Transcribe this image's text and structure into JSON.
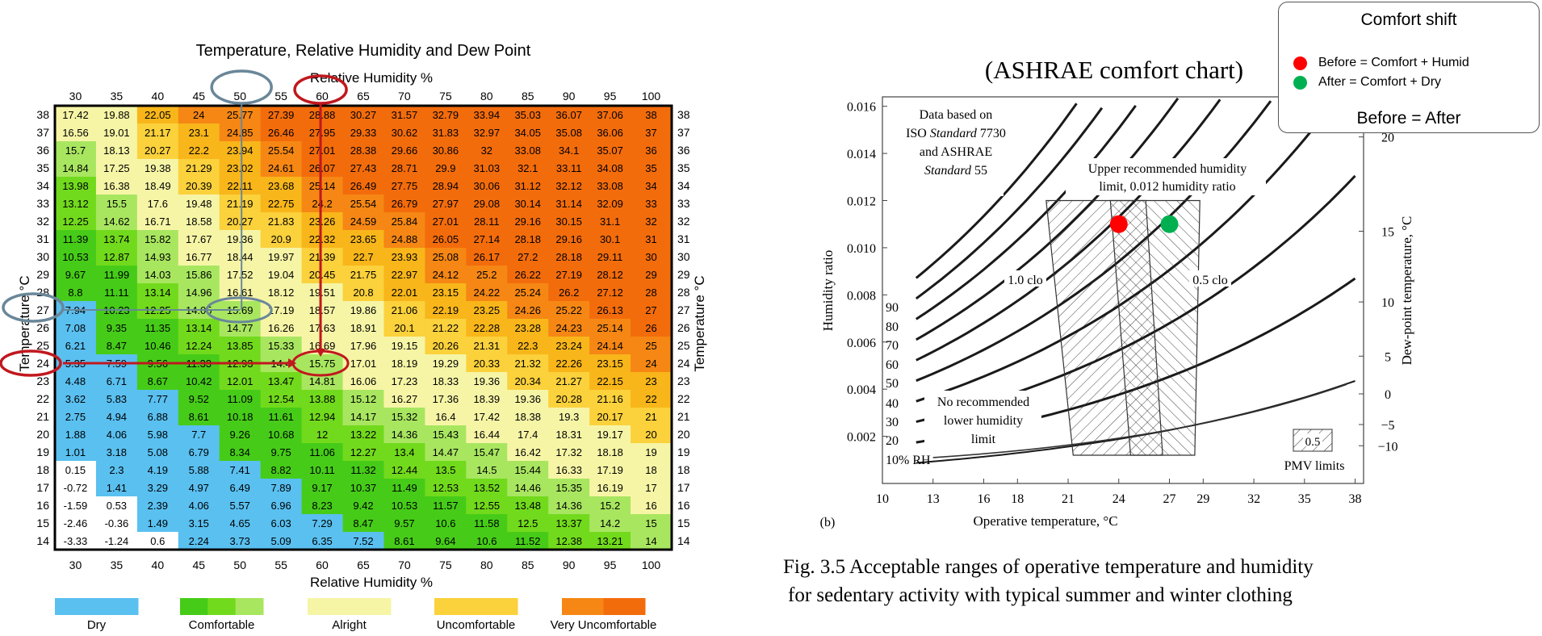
{
  "chart_data": [
    {
      "type": "heatmap",
      "title": "Temperature, Relative Humidity and Dew Point",
      "xlabel": "Relative Humidity %",
      "ylabel": "Temperature °C",
      "x": [
        30,
        35,
        40,
        45,
        50,
        55,
        60,
        65,
        70,
        75,
        80,
        85,
        90,
        95,
        100
      ],
      "y": [
        38,
        37,
        36,
        35,
        34,
        33,
        32,
        31,
        30,
        29,
        28,
        27,
        26,
        25,
        24,
        23,
        22,
        21,
        20,
        19,
        18,
        17,
        16,
        15,
        14
      ],
      "cells": [
        [
          "17.42",
          "19.88",
          "22.05",
          "24",
          "25.77",
          "27.39",
          "28.88",
          "30.27",
          "31.57",
          "32.79",
          "33.94",
          "35.03",
          "36.07",
          "37.06",
          "38"
        ],
        [
          "16.56",
          "19.01",
          "21.17",
          "23.1",
          "24.85",
          "26.46",
          "27.95",
          "29.33",
          "30.62",
          "31.83",
          "32.97",
          "34.05",
          "35.08",
          "36.06",
          "37"
        ],
        [
          "15.7",
          "18.13",
          "20.27",
          "22.2",
          "23.94",
          "25.54",
          "27.01",
          "28.38",
          "29.66",
          "30.86",
          "32",
          "33.08",
          "34.1",
          "35.07",
          "36"
        ],
        [
          "14.84",
          "17.25",
          "19.38",
          "21.29",
          "23.02",
          "24.61",
          "26.07",
          "27.43",
          "28.71",
          "29.9",
          "31.03",
          "32.1",
          "33.11",
          "34.08",
          "35"
        ],
        [
          "13.98",
          "16.38",
          "18.49",
          "20.39",
          "22.11",
          "23.68",
          "25.14",
          "26.49",
          "27.75",
          "28.94",
          "30.06",
          "31.12",
          "32.12",
          "33.08",
          "34"
        ],
        [
          "13.12",
          "15.5",
          "17.6",
          "19.48",
          "21.19",
          "22.75",
          "24.2",
          "25.54",
          "26.79",
          "27.97",
          "29.08",
          "30.14",
          "31.14",
          "32.09",
          "33"
        ],
        [
          "12.25",
          "14.62",
          "16.71",
          "18.58",
          "20.27",
          "21.83",
          "23.26",
          "24.59",
          "25.84",
          "27.01",
          "28.11",
          "29.16",
          "30.15",
          "31.1",
          "32"
        ],
        [
          "11.39",
          "13.74",
          "15.82",
          "17.67",
          "19.36",
          "20.9",
          "22.32",
          "23.65",
          "24.88",
          "26.05",
          "27.14",
          "28.18",
          "29.16",
          "30.1",
          "31"
        ],
        [
          "10.53",
          "12.87",
          "14.93",
          "16.77",
          "18.44",
          "19.97",
          "21.39",
          "22.7",
          "23.93",
          "25.08",
          "26.17",
          "27.2",
          "28.18",
          "29.11",
          "30"
        ],
        [
          "9.67",
          "11.99",
          "14.03",
          "15.86",
          "17.52",
          "19.04",
          "20.45",
          "21.75",
          "22.97",
          "24.12",
          "25.2",
          "26.22",
          "27.19",
          "28.12",
          "29"
        ],
        [
          "8.8",
          "11.11",
          "13.14",
          "14.96",
          "16.61",
          "18.12",
          "19.51",
          "20.8",
          "22.01",
          "23.15",
          "24.22",
          "25.24",
          "26.2",
          "27.12",
          "28"
        ],
        [
          "7.94",
          "10.23",
          "12.25",
          "14.05",
          "15.69",
          "17.19",
          "18.57",
          "19.86",
          "21.06",
          "22.19",
          "23.25",
          "24.26",
          "25.22",
          "26.13",
          "27"
        ],
        [
          "7.08",
          "9.35",
          "11.35",
          "13.14",
          "14.77",
          "16.26",
          "17.63",
          "18.91",
          "20.1",
          "21.22",
          "22.28",
          "23.28",
          "24.23",
          "25.14",
          "26"
        ],
        [
          "6.21",
          "8.47",
          "10.46",
          "12.24",
          "13.85",
          "15.33",
          "16.69",
          "17.96",
          "19.15",
          "20.26",
          "21.31",
          "22.3",
          "23.24",
          "24.14",
          "25"
        ],
        [
          "5.35",
          "7.59",
          "9.56",
          "11.33",
          "12.93",
          "14.4",
          "15.75",
          "17.01",
          "18.19",
          "19.29",
          "20.33",
          "21.32",
          "22.26",
          "23.15",
          "24"
        ],
        [
          "4.48",
          "6.71",
          "8.67",
          "10.42",
          "12.01",
          "13.47",
          "14.81",
          "16.06",
          "17.23",
          "18.33",
          "19.36",
          "20.34",
          "21.27",
          "22.15",
          "23"
        ],
        [
          "3.62",
          "5.83",
          "7.77",
          "9.52",
          "11.09",
          "12.54",
          "13.88",
          "15.12",
          "16.27",
          "17.36",
          "18.39",
          "19.36",
          "20.28",
          "21.16",
          "22"
        ],
        [
          "2.75",
          "4.94",
          "6.88",
          "8.61",
          "10.18",
          "11.61",
          "12.94",
          "14.17",
          "15.32",
          "16.4",
          "17.42",
          "18.38",
          "19.3",
          "20.17",
          "21"
        ],
        [
          "1.88",
          "4.06",
          "5.98",
          "7.7",
          "9.26",
          "10.68",
          "12",
          "13.22",
          "14.36",
          "15.43",
          "16.44",
          "17.4",
          "18.31",
          "19.17",
          "20"
        ],
        [
          "1.01",
          "3.18",
          "5.08",
          "6.79",
          "8.34",
          "9.75",
          "11.06",
          "12.27",
          "13.4",
          "14.47",
          "15.47",
          "16.42",
          "17.32",
          "18.18",
          "19"
        ],
        [
          "0.15",
          "2.3",
          "4.19",
          "5.88",
          "7.41",
          "8.82",
          "10.11",
          "11.32",
          "12.44",
          "13.5",
          "14.5",
          "15.44",
          "16.33",
          "17.19",
          "18"
        ],
        [
          "-0.72",
          "1.41",
          "3.29",
          "4.97",
          "6.49",
          "7.89",
          "9.17",
          "10.37",
          "11.49",
          "12.53",
          "13.52",
          "14.46",
          "15.35",
          "16.19",
          "17"
        ],
        [
          "-1.59",
          "0.53",
          "2.39",
          "4.06",
          "5.57",
          "6.96",
          "8.23",
          "9.42",
          "10.53",
          "11.57",
          "12.55",
          "13.48",
          "14.36",
          "15.2",
          "16"
        ],
        [
          "-2.46",
          "-0.36",
          "1.49",
          "3.15",
          "4.65",
          "6.03",
          "7.29",
          "8.47",
          "9.57",
          "10.6",
          "11.58",
          "12.5",
          "13.37",
          "14.2",
          "15"
        ],
        [
          "-3.33",
          "-1.24",
          "0.6",
          "2.24",
          "3.73",
          "5.09",
          "6.35",
          "7.52",
          "8.61",
          "9.64",
          "10.6",
          "11.52",
          "12.38",
          "13.21",
          "14"
        ]
      ],
      "legend": [
        "Dry",
        "Comfortable",
        "Alright",
        "Uncomfortable",
        "Very Uncomfortable"
      ],
      "colors": {
        "dry": "#5ac0f0",
        "comfortable_1": "#46cc18",
        "comfortable_2": "#72da1c",
        "comfortable_3": "#a8e660",
        "alright": "#f6f5a6",
        "uncomfortable_1": "#fbd13c",
        "uncomfortable_2": "#f8b61a",
        "very_1": "#f68714",
        "very_2": "#f36c0c",
        "highlight_red": "#c0181e",
        "highlight_blue": "#6a8799"
      },
      "grid": true
    },
    {
      "type": "line",
      "title": "(ASHRAE comfort chart)",
      "xlabel": "Operative temperature, °C",
      "ylabel": "Humidity ratio",
      "y2label": "Dew-point temperature, °C",
      "xticks": [
        "10",
        "13",
        "16",
        "18",
        "21",
        "24",
        "27",
        "29",
        "32",
        "35",
        "38"
      ],
      "yticks": [
        "0.002",
        "0.004",
        "0.006",
        "0.008",
        "0.010",
        "0.012",
        "0.014",
        "0.016"
      ],
      "y2ticks": [
        "−10",
        "−5",
        "0",
        "5",
        "10",
        "15",
        "20"
      ],
      "rh_labels": [
        "10% RH",
        "20",
        "30",
        "40",
        "50",
        "60",
        "70",
        "80",
        "90"
      ],
      "annotations": {
        "data_note_1": "Data based on",
        "data_note_2a": "ISO ",
        "data_note_2b": "Standard",
        "data_note_2c": " 7730",
        "data_note_3": "and ASHRAE",
        "data_note_4a": "Standard",
        "data_note_4b": " 55",
        "upper_1": "Upper recommended humidity",
        "upper_2": "limit, 0.012 humidity ratio",
        "no_lower_1": "No recommended",
        "no_lower_2": "lower humidity",
        "no_lower_3": "limit",
        "clo_1": "1.0 clo",
        "clo_05": "0.5 clo",
        "pmv_value": "0.5",
        "pmv_label": "PMV limits",
        "panel": "(b)"
      },
      "points": [
        {
          "name": "Before",
          "x": 24,
          "y": 0.011,
          "color": "#ff0000"
        },
        {
          "name": "After",
          "x": 27,
          "y": 0.011,
          "color": "#00b050"
        }
      ],
      "caption_1": "Fig. 3.5 Acceptable ranges of operative temperature and humidity",
      "caption_2": "for sedentary activity with typical summer and winter clothing"
    }
  ],
  "legend_box": {
    "title": "Comfort shift",
    "before": "Before = Comfort + Humid",
    "after": "After = Comfort + Dry",
    "equation": "Before = After",
    "before_color": "#ff0000",
    "after_color": "#00b050"
  }
}
